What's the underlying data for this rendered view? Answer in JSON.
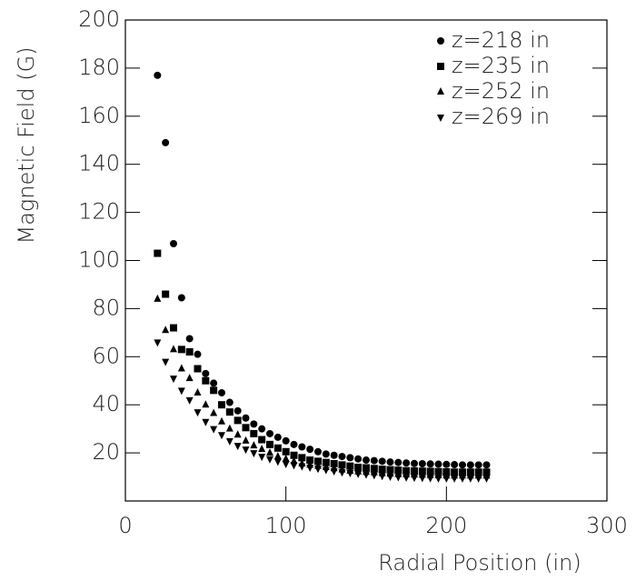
{
  "chart_data": {
    "type": "scatter",
    "xlabel": "Radial Position (in)",
    "ylabel": "Magnetic Field (G)",
    "x": [
      20,
      25,
      30,
      35,
      40,
      45,
      50,
      55,
      60,
      65,
      70,
      75,
      80,
      85,
      90,
      95,
      100,
      105,
      110,
      115,
      120,
      125,
      130,
      135,
      140,
      145,
      150,
      155,
      160,
      165,
      170,
      175,
      180,
      185,
      190,
      195,
      200,
      205,
      210,
      215,
      220,
      225
    ],
    "series": [
      {
        "name": "z=218 in",
        "color": "#000000",
        "marker": "circle",
        "values": [
          177,
          149,
          107,
          84.5,
          67.5,
          61,
          53,
          49,
          45,
          41,
          37.5,
          34.5,
          32,
          30,
          28,
          26.5,
          25,
          23.5,
          22.5,
          21.5,
          20.5,
          19.5,
          19,
          18.5,
          18,
          17.5,
          17,
          16.8,
          16.5,
          16.2,
          16,
          15.8,
          15.6,
          15.5,
          15.4,
          15.3,
          15.2,
          15.1,
          15,
          15,
          15,
          15
        ]
      },
      {
        "name": "z=235 in",
        "color": "#000000",
        "marker": "square",
        "values": [
          103,
          86,
          72,
          63,
          62,
          55,
          50,
          46,
          40,
          37,
          33.5,
          30.5,
          28,
          25.5,
          23.5,
          22,
          20.5,
          19,
          18,
          17,
          16.5,
          16,
          15.5,
          15,
          14.5,
          14,
          13.8,
          13.5,
          13.2,
          13,
          12.8,
          12.6,
          12.5,
          12.4,
          12.3,
          12.2,
          12.1,
          12,
          12,
          12,
          12,
          12
        ]
      },
      {
        "name": "z=252 in",
        "color": "#000000",
        "marker": "triangle",
        "values": [
          84,
          71,
          63,
          55,
          51,
          45,
          40,
          36.5,
          33,
          30,
          27.5,
          25,
          23,
          21.5,
          20,
          18.5,
          17.5,
          16.5,
          15.5,
          15,
          14.5,
          14,
          13.5,
          13,
          12.5,
          12.2,
          12,
          11.8,
          11.5,
          11.3,
          11.1,
          11,
          10.9,
          10.8,
          10.7,
          10.6,
          10.5,
          10.5,
          10.5,
          10.5,
          10.5,
          10.5
        ]
      },
      {
        "name": "z=269 in",
        "color": "#000000",
        "marker": "triangle-down",
        "values": [
          66,
          58,
          51,
          46,
          42,
          37,
          33,
          30,
          27.5,
          25,
          23,
          21.5,
          20,
          18.5,
          17.5,
          16.5,
          15.5,
          15,
          14.5,
          14,
          13.5,
          13,
          12.5,
          12,
          11.7,
          11.4,
          11.1,
          10.8,
          10.5,
          10.2,
          10,
          9.9,
          9.8,
          9.7,
          9.6,
          9.5,
          9.5,
          9.5,
          9.5,
          9.5,
          9.5,
          9.5
        ]
      }
    ],
    "xlim": [
      0,
      300
    ],
    "xticks": [
      0,
      100,
      200,
      300
    ],
    "ylim": [
      0,
      200
    ],
    "yticks": [
      20,
      40,
      60,
      80,
      100,
      120,
      140,
      160,
      180,
      200
    ],
    "legend": "upper right",
    "grid": false
  }
}
